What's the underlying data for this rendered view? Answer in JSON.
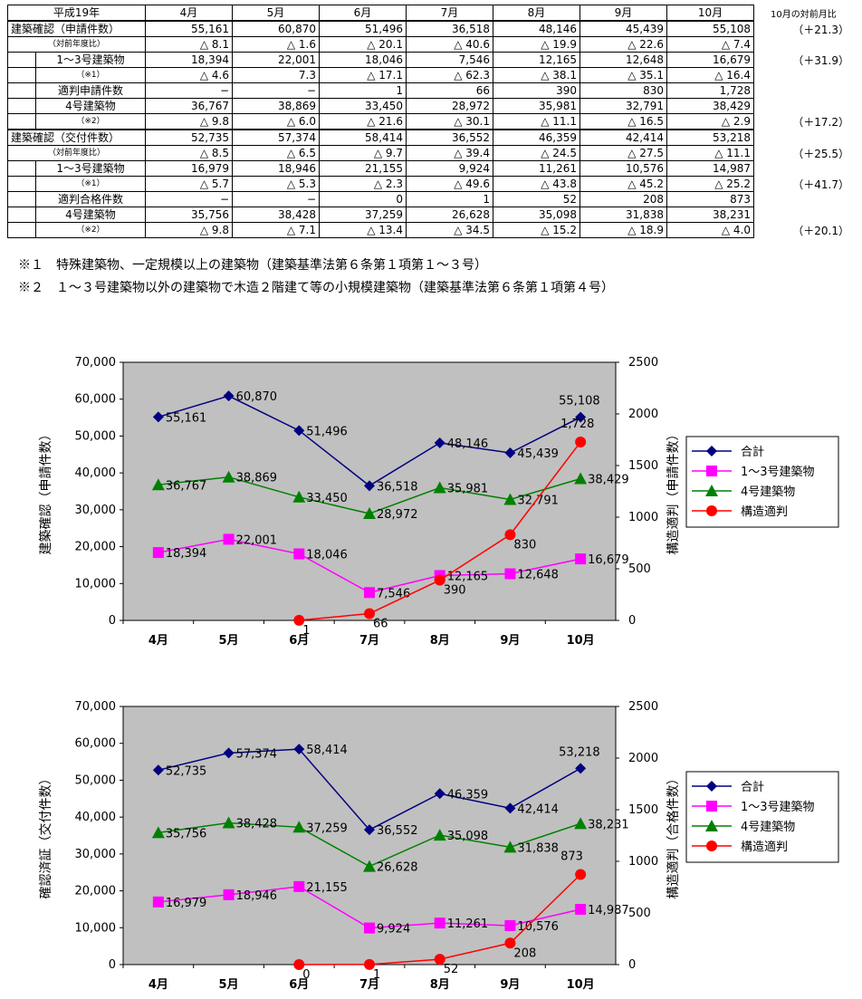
{
  "table": {
    "header": [
      "平成19年",
      "4月",
      "5月",
      "6月",
      "7月",
      "8月",
      "9月",
      "10月"
    ],
    "ratio_header": "10月の対前月比",
    "rows": [
      {
        "label": "建築確認（申請件数）",
        "values": [
          "55,161",
          "60,870",
          "51,496",
          "36,518",
          "48,146",
          "45,439",
          "55,108"
        ],
        "ratio": "（＋21.3）"
      },
      {
        "label": "（対前年度比）",
        "values": [
          "△ 8.1",
          "△ 1.6",
          "△ 20.1",
          "△ 40.6",
          "△ 19.9",
          "△ 22.6",
          "△ 7.4"
        ],
        "ratio": ""
      },
      {
        "label": "1～3号建築物",
        "values": [
          "18,394",
          "22,001",
          "18,046",
          "7,546",
          "12,165",
          "12,648",
          "16,679"
        ],
        "ratio": "（＋31.9）"
      },
      {
        "label": "（※1）",
        "values": [
          "△ 4.6",
          "7.3",
          "△ 17.1",
          "△ 62.3",
          "△ 38.1",
          "△ 35.1",
          "△ 16.4"
        ],
        "ratio": ""
      },
      {
        "label": "適判申請件数",
        "values": [
          "−",
          "−",
          "1",
          "66",
          "390",
          "830",
          "1,728"
        ],
        "ratio": ""
      },
      {
        "label": "4号建築物",
        "values": [
          "36,767",
          "38,869",
          "33,450",
          "28,972",
          "35,981",
          "32,791",
          "38,429"
        ],
        "ratio": ""
      },
      {
        "label": "（※2）",
        "values": [
          "△ 9.8",
          "△ 6.0",
          "△ 21.6",
          "△ 30.1",
          "△ 11.1",
          "△ 16.5",
          "△ 2.9"
        ],
        "ratio": "（＋17.2）"
      },
      {
        "label": "建築確認（交付件数）",
        "values": [
          "52,735",
          "57,374",
          "58,414",
          "36,552",
          "46,359",
          "42,414",
          "53,218"
        ],
        "ratio": ""
      },
      {
        "label": "（対前年度比）",
        "values": [
          "△ 8.5",
          "△ 6.5",
          "△ 9.7",
          "△ 39.4",
          "△ 24.5",
          "△ 27.5",
          "△ 11.1"
        ],
        "ratio": "（＋25.5）"
      },
      {
        "label": "1～3号建築物",
        "values": [
          "16,979",
          "18,946",
          "21,155",
          "9,924",
          "11,261",
          "10,576",
          "14,987"
        ],
        "ratio": ""
      },
      {
        "label": "（※1）",
        "values": [
          "△ 5.7",
          "△ 5.3",
          "△ 2.3",
          "△ 49.6",
          "△ 43.8",
          "△ 45.2",
          "△ 25.2"
        ],
        "ratio": "（＋41.7）"
      },
      {
        "label": "適判合格件数",
        "values": [
          "−",
          "−",
          "0",
          "1",
          "52",
          "208",
          "873"
        ],
        "ratio": ""
      },
      {
        "label": "4号建築物",
        "values": [
          "35,756",
          "38,428",
          "37,259",
          "26,628",
          "35,098",
          "31,838",
          "38,231"
        ],
        "ratio": ""
      },
      {
        "label": "（※2）",
        "values": [
          "△ 9.8",
          "△ 7.1",
          "△ 13.4",
          "△ 34.5",
          "△ 15.2",
          "△ 18.9",
          "△ 4.0"
        ],
        "ratio": "（＋20.1）"
      }
    ]
  },
  "notes": [
    "※１　特殊建築物、一定規模以上の建築物（建築基準法第６条第１項第１～３号）",
    "※２　１～３号建築物以外の建築物で木造２階建て等の小規模建築物（建築基準法第６条第１項第４号）"
  ],
  "chart_data": [
    {
      "type": "line",
      "categories": [
        "4月",
        "5月",
        "6月",
        "7月",
        "8月",
        "9月",
        "10月"
      ],
      "ylabel": "建築確認（申請件数）",
      "y2label": "構造適判（申請件数）",
      "ylim": [
        0,
        70000
      ],
      "y2lim": [
        0,
        2500
      ],
      "yticks": [
        "0",
        "10,000",
        "20,000",
        "30,000",
        "40,000",
        "50,000",
        "60,000",
        "70,000"
      ],
      "y2ticks": [
        "0",
        "500",
        "1000",
        "1500",
        "2000",
        "2500"
      ],
      "grid": false,
      "legend_position": "right",
      "series": [
        {
          "name": "合計",
          "axis": "left",
          "color": "#000080",
          "marker": "diamond",
          "values": [
            55161,
            60870,
            51496,
            36518,
            48146,
            45439,
            55108
          ],
          "labels": [
            "55,161",
            "60,870",
            "51,496",
            "36,518",
            "48,146",
            "45,439",
            "55,108"
          ]
        },
        {
          "name": "1～3号建築物",
          "axis": "left",
          "color": "#FF00FF",
          "marker": "square",
          "values": [
            18394,
            22001,
            18046,
            7546,
            12165,
            12648,
            16679
          ],
          "labels": [
            "18,394",
            "22,001",
            "18,046",
            "7,546",
            "12,165",
            "12,648",
            "16,679"
          ]
        },
        {
          "name": "4号建築物",
          "axis": "left",
          "color": "#008000",
          "marker": "triangle",
          "values": [
            36767,
            38869,
            33450,
            28972,
            35981,
            32791,
            38429
          ],
          "labels": [
            "36,767",
            "38,869",
            "33,450",
            "28,972",
            "35,981",
            "32,791",
            "38,429"
          ]
        },
        {
          "name": "構造適判",
          "axis": "right",
          "color": "#FF0000",
          "marker": "circle",
          "values": [
            null,
            null,
            1,
            66,
            390,
            830,
            1728
          ],
          "labels": [
            "",
            "",
            "1",
            "66",
            "390",
            "830",
            "1,728"
          ]
        }
      ]
    },
    {
      "type": "line",
      "categories": [
        "4月",
        "5月",
        "6月",
        "7月",
        "8月",
        "9月",
        "10月"
      ],
      "ylabel": "確認済証（交付件数）",
      "y2label": "構造適判（合格件数）",
      "ylim": [
        0,
        70000
      ],
      "y2lim": [
        0,
        2500
      ],
      "yticks": [
        "0",
        "10,000",
        "20,000",
        "30,000",
        "40,000",
        "50,000",
        "60,000",
        "70,000"
      ],
      "y2ticks": [
        "0",
        "500",
        "1000",
        "1500",
        "2000",
        "2500"
      ],
      "grid": false,
      "legend_position": "right",
      "series": [
        {
          "name": "合計",
          "axis": "left",
          "color": "#000080",
          "marker": "diamond",
          "values": [
            52735,
            57374,
            58414,
            36552,
            46359,
            42414,
            53218
          ],
          "labels": [
            "52,735",
            "57,374",
            "58,414",
            "36,552",
            "46,359",
            "42,414",
            "53,218"
          ]
        },
        {
          "name": "1～3号建築物",
          "axis": "left",
          "color": "#FF00FF",
          "marker": "square",
          "values": [
            16979,
            18946,
            21155,
            9924,
            11261,
            10576,
            14987
          ],
          "labels": [
            "16,979",
            "18,946",
            "21,155",
            "9,924",
            "11,261",
            "10,576",
            "14,987"
          ]
        },
        {
          "name": "4号建築物",
          "axis": "left",
          "color": "#008000",
          "marker": "triangle",
          "values": [
            35756,
            38428,
            37259,
            26628,
            35098,
            31838,
            38231
          ],
          "labels": [
            "35,756",
            "38,428",
            "37,259",
            "26,628",
            "35,098",
            "31,838",
            "38,231"
          ]
        },
        {
          "name": "構造適判",
          "axis": "right",
          "color": "#FF0000",
          "marker": "circle",
          "values": [
            null,
            null,
            0,
            1,
            52,
            208,
            873
          ],
          "labels": [
            "",
            "",
            "0",
            "1",
            "52",
            "208",
            "873"
          ]
        }
      ]
    }
  ]
}
